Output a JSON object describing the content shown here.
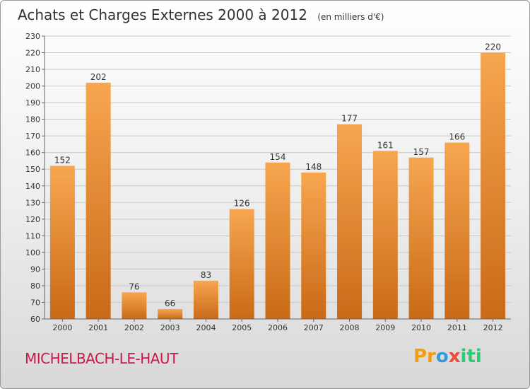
{
  "header": {
    "title": "Achats et Charges Externes 2000 à 2012",
    "unit": "(en milliers d'€)"
  },
  "footer": {
    "commune": "MICHELBACH-LE-HAUT",
    "brand_parts": [
      "Pr",
      "o",
      "x",
      "iti"
    ]
  },
  "colors": {
    "bar_top": "#f7a64f",
    "bar_bottom": "#c96a17",
    "commune": "#d0174a"
  },
  "chart_data": {
    "type": "bar",
    "title": "Achats et Charges Externes 2000 à 2012",
    "subtitle": "(en milliers d'€)",
    "xlabel": "",
    "ylabel": "",
    "categories": [
      "2000",
      "2001",
      "2002",
      "2003",
      "2004",
      "2005",
      "2006",
      "2007",
      "2008",
      "2009",
      "2010",
      "2011",
      "2012"
    ],
    "values": [
      152,
      202,
      76,
      66,
      83,
      126,
      154,
      148,
      177,
      161,
      157,
      166,
      220
    ],
    "ylim": [
      60,
      230
    ],
    "yticks": [
      60,
      70,
      80,
      90,
      100,
      110,
      120,
      130,
      140,
      150,
      160,
      170,
      180,
      190,
      200,
      210,
      220,
      230
    ],
    "grid": true,
    "legend": "none"
  }
}
